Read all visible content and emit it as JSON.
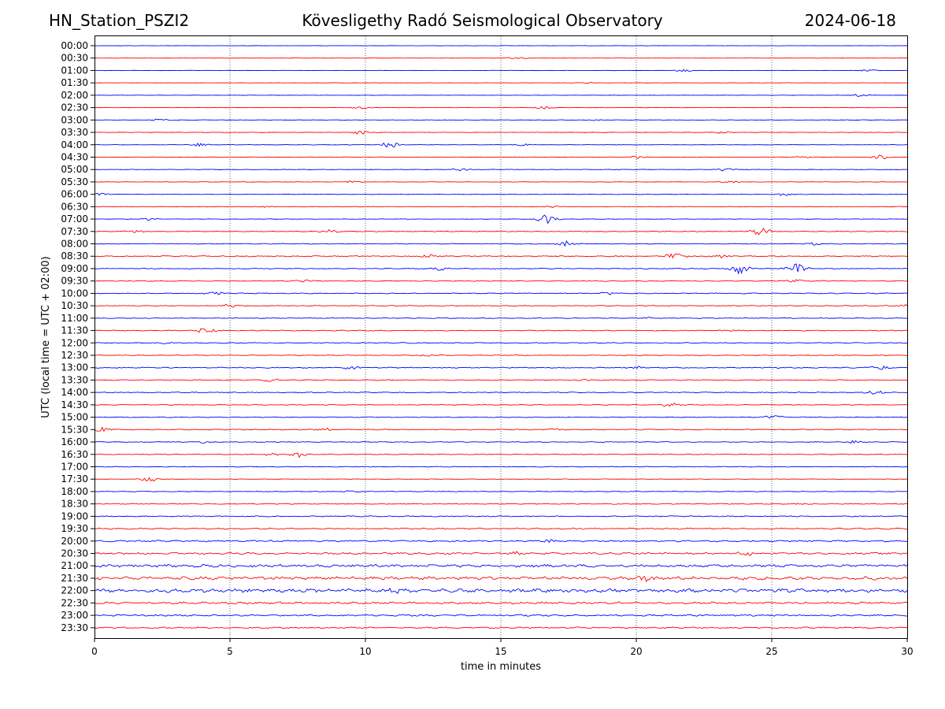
{
  "header": {
    "station": "HN_Station_PSZI2",
    "title": "Kövesligethy Radó Seismological Observatory",
    "date": "2024-06-18"
  },
  "chart_data": {
    "type": "line",
    "title": "Kövesligethy Radó Seismological Observatory",
    "xlabel": "time in minutes",
    "ylabel": "UTC (local time = UTC + 02:00)",
    "xlim": [
      0,
      30
    ],
    "x_ticks": [
      0,
      5,
      10,
      15,
      20,
      25,
      30
    ],
    "grid": "vertical dotted lines at 5, 10, 15, 20, 25 minutes",
    "colors": {
      "even_rows": "#0000ff",
      "odd_rows": "#ff0000"
    },
    "rows": [
      {
        "label": "00:00",
        "noise": 0.2,
        "events": []
      },
      {
        "label": "00:30",
        "noise": 0.2,
        "events": [
          {
            "t": 15.6,
            "amp": 1.5
          }
        ]
      },
      {
        "label": "01:00",
        "noise": 0.2,
        "events": [
          {
            "t": 21.7,
            "amp": 1.5
          },
          {
            "t": 28.6,
            "amp": 1
          }
        ]
      },
      {
        "label": "01:30",
        "noise": 0.2,
        "events": [
          {
            "t": 18.2,
            "amp": 1
          }
        ]
      },
      {
        "label": "02:00",
        "noise": 0.2,
        "events": [
          {
            "t": 28.3,
            "amp": 2
          }
        ]
      },
      {
        "label": "02:30",
        "noise": 0.2,
        "events": [
          {
            "t": 16.6,
            "amp": 2
          },
          {
            "t": 9.8,
            "amp": 1.5
          }
        ]
      },
      {
        "label": "03:00",
        "noise": 0.3,
        "events": [
          {
            "t": 2.5,
            "amp": 2
          },
          {
            "t": 18.5,
            "amp": 0.8
          }
        ]
      },
      {
        "label": "03:30",
        "noise": 0.3,
        "events": [
          {
            "t": 9.8,
            "amp": 2.5
          },
          {
            "t": 23.2,
            "amp": 1.5
          }
        ]
      },
      {
        "label": "04:00",
        "noise": 0.3,
        "events": [
          {
            "t": 3.8,
            "amp": 2
          },
          {
            "t": 10.9,
            "amp": 3.5
          },
          {
            "t": 15.8,
            "amp": 1.5
          }
        ]
      },
      {
        "label": "04:30",
        "noise": 0.3,
        "events": [
          {
            "t": 20,
            "amp": 1.5
          },
          {
            "t": 26.2,
            "amp": 1
          },
          {
            "t": 29,
            "amp": 2.5
          }
        ]
      },
      {
        "label": "05:00",
        "noise": 0.3,
        "events": [
          {
            "t": 13.6,
            "amp": 2
          },
          {
            "t": 23.3,
            "amp": 2
          }
        ]
      },
      {
        "label": "05:30",
        "noise": 0.3,
        "events": [
          {
            "t": 9.5,
            "amp": 1.5
          },
          {
            "t": 23.5,
            "amp": 1.5
          }
        ]
      },
      {
        "label": "06:00",
        "noise": 0.3,
        "events": [
          {
            "t": 0.2,
            "amp": 2
          },
          {
            "t": 25.5,
            "amp": 2
          }
        ]
      },
      {
        "label": "06:30",
        "noise": 0.3,
        "events": [
          {
            "t": 6.3,
            "amp": 1
          },
          {
            "t": 17,
            "amp": 1.5
          }
        ]
      },
      {
        "label": "07:00",
        "noise": 0.3,
        "events": [
          {
            "t": 16.7,
            "amp": 6
          },
          {
            "t": 2,
            "amp": 1.5
          }
        ]
      },
      {
        "label": "07:30",
        "noise": 0.5,
        "events": [
          {
            "t": 24.6,
            "amp": 5
          },
          {
            "t": 8.6,
            "amp": 2.5
          },
          {
            "t": 1.5,
            "amp": 1.5
          }
        ]
      },
      {
        "label": "08:00",
        "noise": 0.5,
        "events": [
          {
            "t": 17.5,
            "amp": 4
          },
          {
            "t": 26.5,
            "amp": 2
          }
        ]
      },
      {
        "label": "08:30",
        "noise": 0.7,
        "events": [
          {
            "t": 21.4,
            "amp": 5
          },
          {
            "t": 12.4,
            "amp": 2
          },
          {
            "t": 23,
            "amp": 3
          }
        ]
      },
      {
        "label": "09:00",
        "noise": 0.6,
        "events": [
          {
            "t": 23.8,
            "amp": 7
          },
          {
            "t": 25.9,
            "amp": 6
          },
          {
            "t": 12.8,
            "amp": 2
          }
        ]
      },
      {
        "label": "09:30",
        "noise": 0.6,
        "events": [
          {
            "t": 7.8,
            "amp": 2
          },
          {
            "t": 25.8,
            "amp": 2.5
          }
        ]
      },
      {
        "label": "10:00",
        "noise": 0.6,
        "events": [
          {
            "t": 4.4,
            "amp": 2.5
          },
          {
            "t": 18.9,
            "amp": 1.5
          }
        ]
      },
      {
        "label": "10:30",
        "noise": 0.6,
        "events": [
          {
            "t": 5,
            "amp": 2
          },
          {
            "t": 30,
            "amp": 1.5
          }
        ]
      },
      {
        "label": "11:00",
        "noise": 0.5,
        "events": [
          {
            "t": 20.5,
            "amp": 1.5
          }
        ]
      },
      {
        "label": "11:30",
        "noise": 0.6,
        "events": [
          {
            "t": 4.1,
            "amp": 3.5
          },
          {
            "t": 23.5,
            "amp": 1.5
          }
        ]
      },
      {
        "label": "12:00",
        "noise": 0.6,
        "events": [
          {
            "t": 2.7,
            "amp": 1.5
          }
        ]
      },
      {
        "label": "12:30",
        "noise": 0.5,
        "events": [
          {
            "t": 12.3,
            "amp": 1.5
          }
        ]
      },
      {
        "label": "13:00",
        "noise": 0.7,
        "events": [
          {
            "t": 9.5,
            "amp": 2.5
          },
          {
            "t": 29,
            "amp": 3
          },
          {
            "t": 20,
            "amp": 1.5
          }
        ]
      },
      {
        "label": "13:30",
        "noise": 0.6,
        "events": [
          {
            "t": 6.5,
            "amp": 2
          },
          {
            "t": 18,
            "amp": 1.5
          }
        ]
      },
      {
        "label": "14:00",
        "noise": 0.6,
        "events": [
          {
            "t": 28.8,
            "amp": 2.5
          }
        ]
      },
      {
        "label": "14:30",
        "noise": 0.5,
        "events": [
          {
            "t": 21.3,
            "amp": 2.5
          }
        ]
      },
      {
        "label": "15:00",
        "noise": 0.5,
        "events": [
          {
            "t": 25.1,
            "amp": 2.5
          }
        ]
      },
      {
        "label": "15:30",
        "noise": 0.6,
        "events": [
          {
            "t": 0.3,
            "amp": 3
          },
          {
            "t": 8.5,
            "amp": 2
          },
          {
            "t": 17,
            "amp": 1.5
          }
        ]
      },
      {
        "label": "16:00",
        "noise": 0.5,
        "events": [
          {
            "t": 4,
            "amp": 2
          },
          {
            "t": 28,
            "amp": 2
          }
        ]
      },
      {
        "label": "16:30",
        "noise": 0.5,
        "events": [
          {
            "t": 7.5,
            "amp": 4
          },
          {
            "t": 6.5,
            "amp": 1.5
          }
        ]
      },
      {
        "label": "17:00",
        "noise": 0.5,
        "events": []
      },
      {
        "label": "17:30",
        "noise": 0.3,
        "events": [
          {
            "t": 2,
            "amp": 3.5
          }
        ]
      },
      {
        "label": "18:00",
        "noise": 0.5,
        "events": [
          {
            "t": 9.5,
            "amp": 1.5
          }
        ]
      },
      {
        "label": "18:30",
        "noise": 0.6,
        "events": [
          {
            "t": 26.2,
            "amp": 1.5
          }
        ]
      },
      {
        "label": "19:00",
        "noise": 0.7,
        "events": []
      },
      {
        "label": "19:30",
        "noise": 0.9,
        "events": []
      },
      {
        "label": "20:00",
        "noise": 1.1,
        "events": [
          {
            "t": 16.8,
            "amp": 2
          }
        ]
      },
      {
        "label": "20:30",
        "noise": 1.3,
        "events": [
          {
            "t": 24,
            "amp": 3
          },
          {
            "t": 15.5,
            "amp": 2
          }
        ]
      },
      {
        "label": "21:00",
        "noise": 1.9,
        "events": []
      },
      {
        "label": "21:30",
        "noise": 2.1,
        "events": [
          {
            "t": 20.3,
            "amp": 3
          }
        ]
      },
      {
        "label": "22:00",
        "noise": 2.4,
        "events": [
          {
            "t": 11,
            "amp": 3
          }
        ]
      },
      {
        "label": "22:30",
        "noise": 1.4,
        "events": []
      },
      {
        "label": "23:00",
        "noise": 1.2,
        "events": []
      },
      {
        "label": "23:30",
        "noise": 1,
        "events": []
      }
    ]
  }
}
